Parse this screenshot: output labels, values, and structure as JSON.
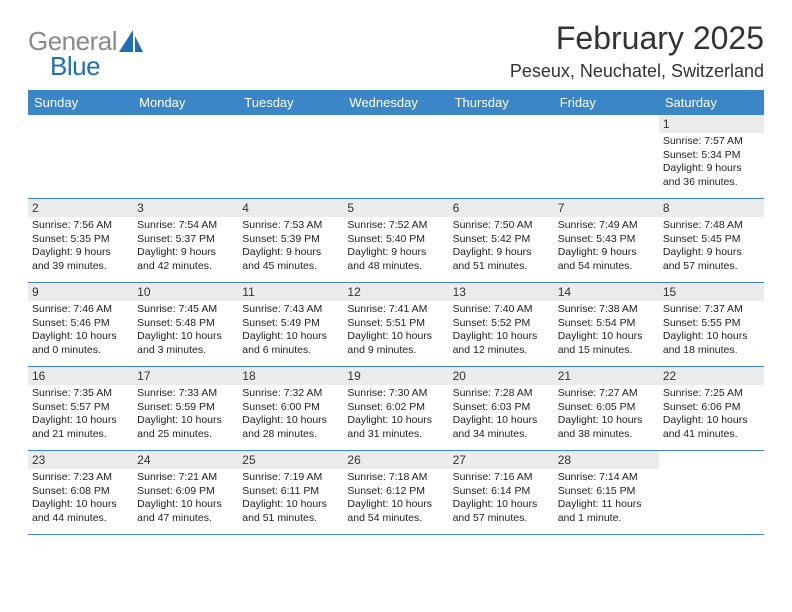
{
  "logo": {
    "general": "General",
    "blue": "Blue"
  },
  "title": "February 2025",
  "location": "Peseux, Neuchatel, Switzerland",
  "colors": {
    "header_bg": "#3b86c6",
    "header_fg": "#ffffff",
    "daynum_bg": "#ebebeb",
    "border": "#3b86c6",
    "logo_gray": "#8a8a8a",
    "logo_blue": "#1f6fb2"
  },
  "weekdays": [
    "Sunday",
    "Monday",
    "Tuesday",
    "Wednesday",
    "Thursday",
    "Friday",
    "Saturday"
  ],
  "weeks": [
    [
      null,
      null,
      null,
      null,
      null,
      null,
      {
        "d": "1",
        "r": "Sunrise: 7:57 AM",
        "s": "Sunset: 5:34 PM",
        "l1": "Daylight: 9 hours",
        "l2": "and 36 minutes."
      }
    ],
    [
      {
        "d": "2",
        "r": "Sunrise: 7:56 AM",
        "s": "Sunset: 5:35 PM",
        "l1": "Daylight: 9 hours",
        "l2": "and 39 minutes."
      },
      {
        "d": "3",
        "r": "Sunrise: 7:54 AM",
        "s": "Sunset: 5:37 PM",
        "l1": "Daylight: 9 hours",
        "l2": "and 42 minutes."
      },
      {
        "d": "4",
        "r": "Sunrise: 7:53 AM",
        "s": "Sunset: 5:39 PM",
        "l1": "Daylight: 9 hours",
        "l2": "and 45 minutes."
      },
      {
        "d": "5",
        "r": "Sunrise: 7:52 AM",
        "s": "Sunset: 5:40 PM",
        "l1": "Daylight: 9 hours",
        "l2": "and 48 minutes."
      },
      {
        "d": "6",
        "r": "Sunrise: 7:50 AM",
        "s": "Sunset: 5:42 PM",
        "l1": "Daylight: 9 hours",
        "l2": "and 51 minutes."
      },
      {
        "d": "7",
        "r": "Sunrise: 7:49 AM",
        "s": "Sunset: 5:43 PM",
        "l1": "Daylight: 9 hours",
        "l2": "and 54 minutes."
      },
      {
        "d": "8",
        "r": "Sunrise: 7:48 AM",
        "s": "Sunset: 5:45 PM",
        "l1": "Daylight: 9 hours",
        "l2": "and 57 minutes."
      }
    ],
    [
      {
        "d": "9",
        "r": "Sunrise: 7:46 AM",
        "s": "Sunset: 5:46 PM",
        "l1": "Daylight: 10 hours",
        "l2": "and 0 minutes."
      },
      {
        "d": "10",
        "r": "Sunrise: 7:45 AM",
        "s": "Sunset: 5:48 PM",
        "l1": "Daylight: 10 hours",
        "l2": "and 3 minutes."
      },
      {
        "d": "11",
        "r": "Sunrise: 7:43 AM",
        "s": "Sunset: 5:49 PM",
        "l1": "Daylight: 10 hours",
        "l2": "and 6 minutes."
      },
      {
        "d": "12",
        "r": "Sunrise: 7:41 AM",
        "s": "Sunset: 5:51 PM",
        "l1": "Daylight: 10 hours",
        "l2": "and 9 minutes."
      },
      {
        "d": "13",
        "r": "Sunrise: 7:40 AM",
        "s": "Sunset: 5:52 PM",
        "l1": "Daylight: 10 hours",
        "l2": "and 12 minutes."
      },
      {
        "d": "14",
        "r": "Sunrise: 7:38 AM",
        "s": "Sunset: 5:54 PM",
        "l1": "Daylight: 10 hours",
        "l2": "and 15 minutes."
      },
      {
        "d": "15",
        "r": "Sunrise: 7:37 AM",
        "s": "Sunset: 5:55 PM",
        "l1": "Daylight: 10 hours",
        "l2": "and 18 minutes."
      }
    ],
    [
      {
        "d": "16",
        "r": "Sunrise: 7:35 AM",
        "s": "Sunset: 5:57 PM",
        "l1": "Daylight: 10 hours",
        "l2": "and 21 minutes."
      },
      {
        "d": "17",
        "r": "Sunrise: 7:33 AM",
        "s": "Sunset: 5:59 PM",
        "l1": "Daylight: 10 hours",
        "l2": "and 25 minutes."
      },
      {
        "d": "18",
        "r": "Sunrise: 7:32 AM",
        "s": "Sunset: 6:00 PM",
        "l1": "Daylight: 10 hours",
        "l2": "and 28 minutes."
      },
      {
        "d": "19",
        "r": "Sunrise: 7:30 AM",
        "s": "Sunset: 6:02 PM",
        "l1": "Daylight: 10 hours",
        "l2": "and 31 minutes."
      },
      {
        "d": "20",
        "r": "Sunrise: 7:28 AM",
        "s": "Sunset: 6:03 PM",
        "l1": "Daylight: 10 hours",
        "l2": "and 34 minutes."
      },
      {
        "d": "21",
        "r": "Sunrise: 7:27 AM",
        "s": "Sunset: 6:05 PM",
        "l1": "Daylight: 10 hours",
        "l2": "and 38 minutes."
      },
      {
        "d": "22",
        "r": "Sunrise: 7:25 AM",
        "s": "Sunset: 6:06 PM",
        "l1": "Daylight: 10 hours",
        "l2": "and 41 minutes."
      }
    ],
    [
      {
        "d": "23",
        "r": "Sunrise: 7:23 AM",
        "s": "Sunset: 6:08 PM",
        "l1": "Daylight: 10 hours",
        "l2": "and 44 minutes."
      },
      {
        "d": "24",
        "r": "Sunrise: 7:21 AM",
        "s": "Sunset: 6:09 PM",
        "l1": "Daylight: 10 hours",
        "l2": "and 47 minutes."
      },
      {
        "d": "25",
        "r": "Sunrise: 7:19 AM",
        "s": "Sunset: 6:11 PM",
        "l1": "Daylight: 10 hours",
        "l2": "and 51 minutes."
      },
      {
        "d": "26",
        "r": "Sunrise: 7:18 AM",
        "s": "Sunset: 6:12 PM",
        "l1": "Daylight: 10 hours",
        "l2": "and 54 minutes."
      },
      {
        "d": "27",
        "r": "Sunrise: 7:16 AM",
        "s": "Sunset: 6:14 PM",
        "l1": "Daylight: 10 hours",
        "l2": "and 57 minutes."
      },
      {
        "d": "28",
        "r": "Sunrise: 7:14 AM",
        "s": "Sunset: 6:15 PM",
        "l1": "Daylight: 11 hours",
        "l2": "and 1 minute."
      },
      null
    ]
  ]
}
